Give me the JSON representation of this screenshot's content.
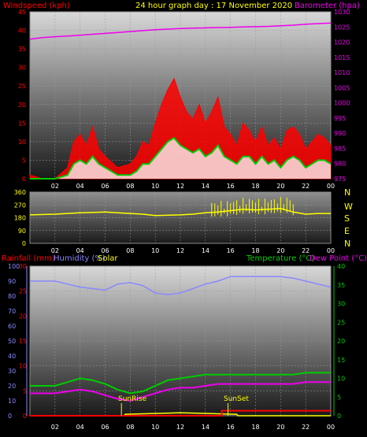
{
  "header": {
    "windspeed_label": "Windspeed (kph)",
    "title": "24 hour graph day : 17 November 2020",
    "barometer_label": "Barometer (hpa)"
  },
  "wind_dir_labels": [
    "N",
    "W",
    "S",
    "E",
    "N"
  ],
  "bottom_labels": {
    "rainfall": "Rainfall (mm)",
    "humidity": "Humidity (%)",
    "solar": "Solar",
    "temperature": "Temperature (°C)",
    "dewpoint": "Dew Point (°C)",
    "sunrise": "SunRise",
    "sunset": "SunSet"
  },
  "colors": {
    "windspeed": "#ff0000",
    "windgust_fill": "#ff0000",
    "avg_wind": "#00cc00",
    "wind_low": "#ffffff",
    "barometer": "#ee00ee",
    "wind_direction": "#ffff00",
    "rainfall": "#ff0000",
    "humidity": "#8888ff",
    "solar": "#ffff00",
    "temperature": "#00cc00",
    "dewpoint": "#ee00ee",
    "axis_left": "#ff0000",
    "axis_right": "#ee00ee",
    "axis_blue": "#8888ff",
    "axis_green": "#00cc00",
    "time_axis": "#ffffff"
  },
  "chart_data": [
    {
      "type": "line",
      "title": "24 hour graph day : 17 November 2020",
      "x_ticks": [
        "02",
        "04",
        "06",
        "08",
        "10",
        "12",
        "14",
        "16",
        "18",
        "20",
        "22",
        "00"
      ],
      "xlim": [
        0,
        24
      ],
      "left_axis": {
        "label": "Windspeed (kph)",
        "ylim": [
          0,
          45
        ],
        "ticks": [
          0,
          5,
          10,
          15,
          20,
          25,
          30,
          35,
          40,
          45
        ]
      },
      "right_axis": {
        "label": "Barometer (hpa)",
        "ylim": [
          975,
          1030
        ],
        "ticks": [
          975,
          980,
          985,
          990,
          995,
          1000,
          1005,
          1010,
          1015,
          1020,
          1025,
          1030
        ]
      },
      "series": [
        {
          "name": "Barometer (hpa)",
          "axis": "right",
          "x": [
            0,
            1,
            2,
            3,
            4,
            5,
            6,
            7,
            8,
            9,
            10,
            11,
            12,
            13,
            14,
            15,
            16,
            17,
            18,
            19,
            20,
            21,
            22,
            23,
            24
          ],
          "values": [
            1021.0,
            1021.5,
            1021.8,
            1022.0,
            1022.3,
            1022.6,
            1022.9,
            1023.2,
            1023.5,
            1023.8,
            1024.1,
            1024.3,
            1024.5,
            1024.6,
            1024.7,
            1024.8,
            1024.9,
            1025.0,
            1025.1,
            1025.2,
            1025.4,
            1025.6,
            1025.9,
            1026.1,
            1026.3
          ]
        },
        {
          "name": "Wind gust",
          "axis": "left",
          "x": [
            0,
            1,
            2,
            3,
            3.5,
            4,
            4.5,
            5,
            5.5,
            6,
            7,
            8,
            8.5,
            9,
            9.5,
            10,
            10.5,
            11,
            11.5,
            12,
            12.5,
            13,
            13.5,
            14,
            14.5,
            15,
            15.5,
            16,
            16.5,
            17,
            17.5,
            18,
            18.5,
            19,
            19.5,
            20,
            20.5,
            21,
            21.5,
            22,
            22.5,
            23,
            23.5,
            24
          ],
          "values": [
            1,
            0,
            0,
            3,
            10,
            12,
            9,
            14,
            8,
            6,
            3,
            4,
            6,
            10,
            9,
            15,
            20,
            24,
            27,
            22,
            18,
            16,
            20,
            15,
            18,
            22,
            14,
            12,
            9,
            15,
            13,
            10,
            14,
            9,
            11,
            8,
            13,
            14,
            12,
            8,
            10,
            12,
            11,
            9
          ]
        },
        {
          "name": "Windspeed",
          "axis": "left",
          "x": [
            0,
            1,
            2,
            3,
            3.5,
            4,
            4.5,
            5,
            5.5,
            6,
            7,
            8,
            8.5,
            9,
            9.5,
            10,
            10.5,
            11,
            11.5,
            12,
            12.5,
            13,
            13.5,
            14,
            14.5,
            15,
            15.5,
            16,
            16.5,
            17,
            17.5,
            18,
            18.5,
            19,
            19.5,
            20,
            20.5,
            21,
            21.5,
            22,
            22.5,
            23,
            23.5,
            24
          ],
          "values": [
            0,
            0,
            0,
            1,
            4,
            5,
            4,
            6,
            4,
            3,
            1,
            1,
            2,
            4,
            4,
            6,
            8,
            10,
            11,
            9,
            8,
            7,
            8,
            6,
            7,
            9,
            6,
            5,
            4,
            6,
            6,
            4,
            6,
            4,
            5,
            3,
            5,
            6,
            5,
            3,
            4,
            5,
            5,
            4
          ]
        }
      ]
    },
    {
      "type": "line",
      "left_axis": {
        "ylim": [
          0,
          360
        ],
        "ticks": [
          0,
          90,
          180,
          270,
          360
        ]
      },
      "right_labels": [
        "N",
        "W",
        "S",
        "E",
        "N"
      ],
      "series": [
        {
          "name": "Wind direction",
          "x": [
            0,
            2,
            4,
            6,
            7,
            8,
            9,
            10,
            12,
            13,
            14,
            15,
            16,
            17,
            18,
            19,
            20,
            21,
            22,
            23,
            24
          ],
          "values": [
            200,
            205,
            215,
            220,
            215,
            210,
            205,
            195,
            200,
            205,
            215,
            220,
            230,
            240,
            235,
            240,
            245,
            220,
            205,
            210,
            210
          ]
        }
      ]
    },
    {
      "type": "line",
      "left_axis": {
        "label": "Humidity (%)",
        "ylim": [
          0,
          100
        ],
        "ticks": [
          0,
          10,
          20,
          30,
          40,
          50,
          60,
          70,
          80,
          90,
          100
        ]
      },
      "rain_axis": {
        "label": "Rainfall (mm)",
        "ylim": [
          0,
          30
        ],
        "ticks": [
          0,
          5,
          10,
          15,
          20,
          25,
          30
        ]
      },
      "right_axis": {
        "label": "Temperature (°C)",
        "ylim": [
          0,
          40
        ],
        "ticks": [
          0,
          5,
          10,
          15,
          20,
          25,
          30,
          35,
          40
        ]
      },
      "series": [
        {
          "name": "Humidity (%)",
          "axis": "left",
          "x": [
            0,
            1,
            2,
            3,
            4,
            5,
            6,
            6.5,
            7,
            8,
            9,
            10,
            11,
            12,
            13,
            14,
            15,
            16,
            17,
            18,
            19,
            20,
            21,
            22,
            23,
            24
          ],
          "values": [
            90,
            90,
            90,
            88,
            86,
            85,
            84,
            86,
            88,
            89,
            87,
            82,
            81,
            82,
            85,
            88,
            90,
            93,
            93,
            93,
            93,
            93,
            92,
            90,
            88,
            86
          ]
        },
        {
          "name": "Temperature (°C)",
          "axis": "right",
          "x": [
            0,
            1,
            2,
            3,
            4,
            5,
            6,
            7,
            8,
            9,
            10,
            11,
            12,
            13,
            14,
            15,
            16,
            17,
            18,
            19,
            20,
            21,
            22,
            23,
            24
          ],
          "values": [
            8,
            8,
            8,
            9,
            10,
            9.5,
            8.5,
            7,
            6,
            6.5,
            8,
            9.5,
            10,
            10.5,
            11,
            11,
            11,
            11,
            11,
            11,
            11,
            11,
            11.5,
            11.5,
            11.5
          ]
        },
        {
          "name": "Dew Point (°C)",
          "axis": "right",
          "x": [
            0,
            1,
            2,
            3,
            4,
            5,
            6,
            7,
            8,
            9,
            10,
            11,
            12,
            13,
            14,
            15,
            16,
            17,
            18,
            19,
            20,
            21,
            22,
            23,
            24
          ],
          "values": [
            6,
            6,
            6,
            6.5,
            7,
            6.5,
            5.5,
            4.5,
            4,
            5,
            6,
            7,
            7.5,
            7.5,
            8,
            8.5,
            8.5,
            8.5,
            8.5,
            8.5,
            8.5,
            8.5,
            9,
            9,
            9
          ]
        },
        {
          "name": "Rainfall (mm)",
          "axis": "rain",
          "x": [
            0,
            1,
            2,
            3,
            4,
            5,
            6,
            7,
            8,
            9,
            10,
            11,
            12,
            13,
            14,
            15,
            15.3,
            16,
            17,
            18,
            19,
            20,
            21,
            22,
            23,
            24
          ],
          "values": [
            0,
            0,
            0,
            0,
            0,
            0,
            0,
            0,
            0,
            0,
            0,
            0,
            0,
            0,
            0,
            0,
            1,
            1,
            1,
            1,
            1,
            1,
            1,
            1,
            1,
            1
          ]
        },
        {
          "name": "Solar",
          "axis": "left",
          "x": [
            0,
            7.5,
            7.6,
            12,
            16.5,
            16.6,
            24
          ],
          "values": [
            0,
            0,
            1,
            2,
            1,
            0,
            0
          ]
        }
      ],
      "events": [
        {
          "label": "SunRise",
          "x": 7.3
        },
        {
          "label": "SunSet",
          "x": 15.8
        }
      ]
    }
  ]
}
